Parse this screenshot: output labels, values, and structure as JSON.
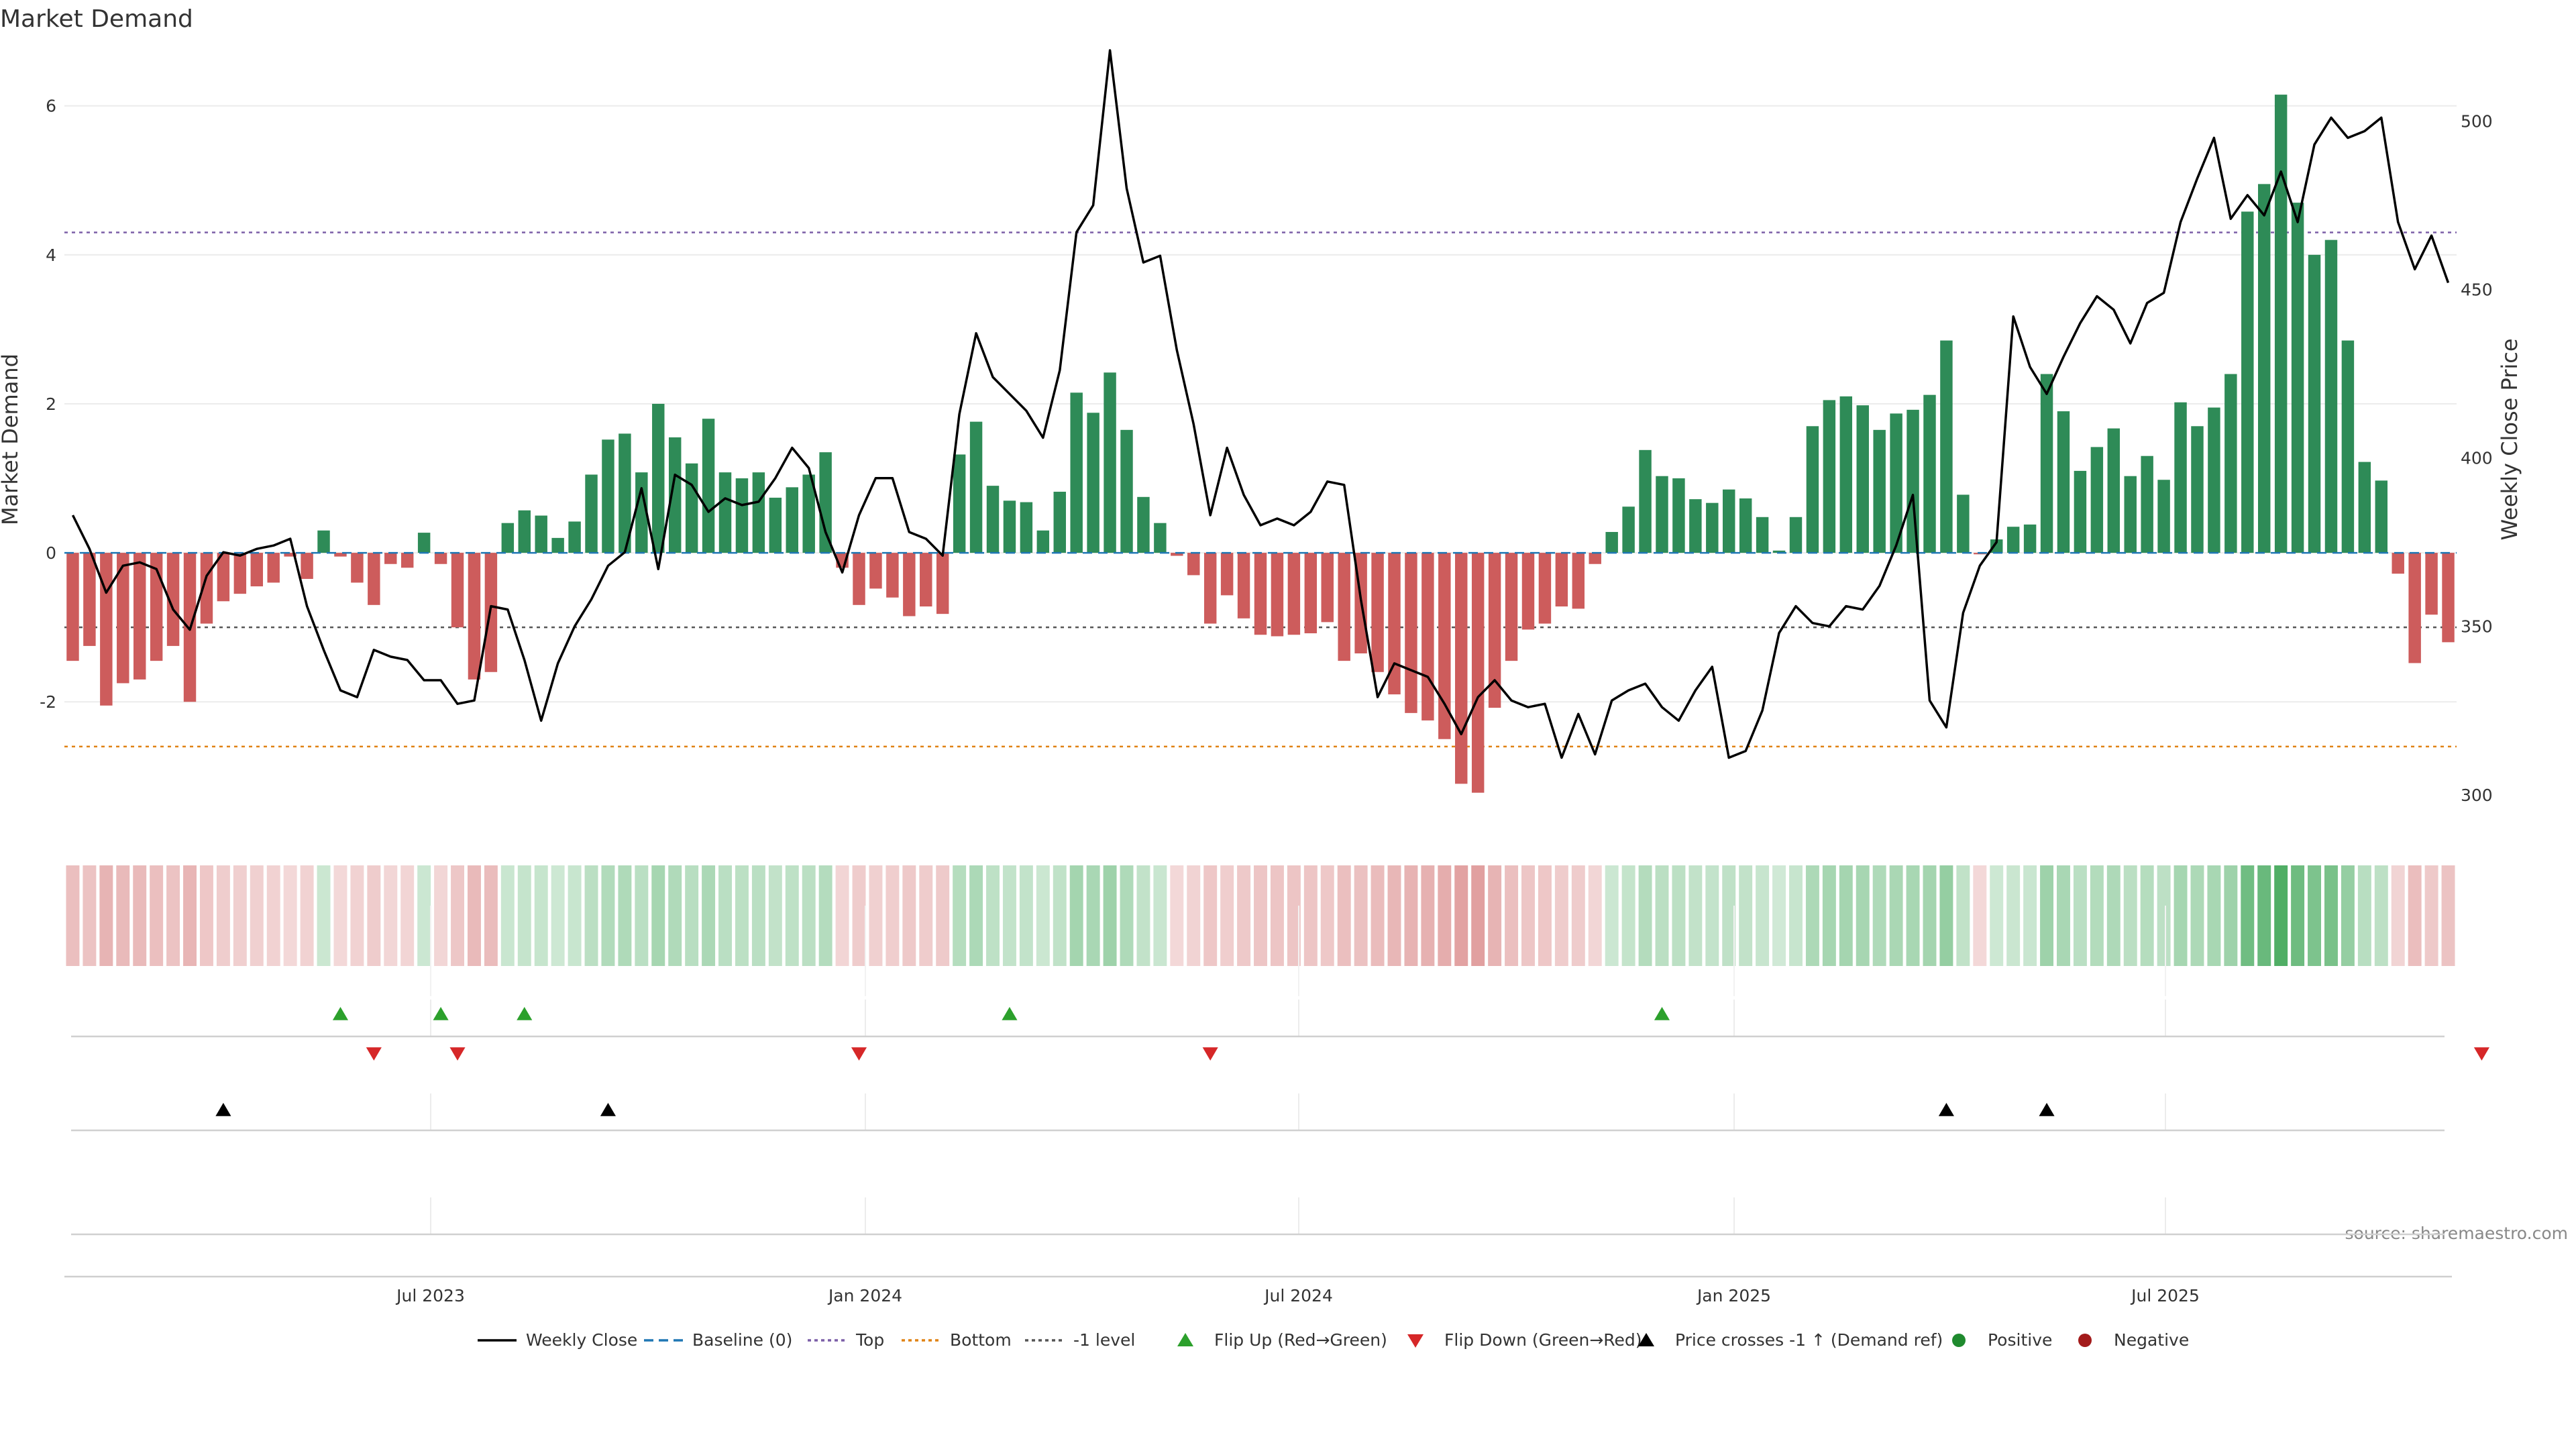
{
  "chart_data": {
    "type": "bar",
    "title": "Market Demand",
    "ylabel": "Market Demand",
    "y2label": "Weekly Close Price",
    "ylim": [
      -3.7,
      6.7
    ],
    "y2lim": [
      290,
      520
    ],
    "y_ticks": [
      -2,
      0,
      2,
      4,
      6
    ],
    "y2_ticks": [
      300,
      350,
      400,
      450,
      500
    ],
    "x_ticks": [
      "Jul 2023",
      "Jan 2024",
      "Jul 2024",
      "Jan 2025",
      "Jul 2025"
    ],
    "source": "source: sharemaestro.com",
    "reference_lines": {
      "baseline": 0,
      "top": 4.3,
      "minus_one": -1.0,
      "bottom": -2.6
    },
    "series": [
      {
        "name": "Market Demand",
        "values": [
          -1.45,
          -1.25,
          -2.05,
          -1.75,
          -1.7,
          -1.45,
          -1.25,
          -2.0,
          -0.95,
          -0.65,
          -0.55,
          -0.45,
          -0.4,
          -0.05,
          -0.35,
          0.3,
          -0.05,
          -0.4,
          -0.7,
          -0.15,
          -0.2,
          0.27,
          -0.15,
          -1.0,
          -1.7,
          -1.6,
          0.4,
          0.57,
          0.5,
          0.2,
          0.42,
          1.05,
          1.52,
          1.6,
          1.08,
          2.0,
          1.55,
          1.2,
          1.8,
          1.08,
          1.0,
          1.08,
          0.74,
          0.88,
          1.05,
          1.35,
          -0.2,
          -0.7,
          -0.48,
          -0.6,
          -0.85,
          -0.72,
          -0.82,
          1.32,
          1.76,
          0.9,
          0.7,
          0.68,
          0.3,
          0.82,
          2.15,
          1.88,
          2.42,
          1.65,
          0.75,
          0.4,
          -0.04,
          -0.3,
          -0.95,
          -0.57,
          -0.88,
          -1.1,
          -1.12,
          -1.1,
          -1.08,
          -0.93,
          -1.45,
          -1.35,
          -1.6,
          -1.9,
          -2.15,
          -2.25,
          -2.5,
          -3.1,
          -3.22,
          -2.08,
          -1.45,
          -1.03,
          -0.95,
          -0.72,
          -0.75,
          -0.15,
          0.28,
          0.62,
          1.38,
          1.03,
          1.0,
          0.72,
          0.67,
          0.85,
          0.73,
          0.48,
          0.03,
          0.48,
          1.7,
          2.05,
          2.1,
          1.98,
          1.65,
          1.87,
          1.92,
          2.12,
          2.85,
          0.78,
          -0.02,
          0.18,
          0.35,
          0.38,
          2.4,
          1.9,
          1.1,
          1.42,
          1.67,
          1.03,
          1.3,
          0.98,
          2.02,
          1.7,
          1.95,
          2.4,
          4.58,
          4.95,
          6.15,
          4.7,
          4.0,
          4.2,
          2.85,
          1.22,
          0.97,
          -0.28,
          -1.48,
          -0.83,
          -1.2
        ]
      },
      {
        "name": "Weekly Close",
        "values": [
          383,
          373,
          360,
          368,
          369,
          367,
          355,
          349,
          365,
          372,
          371,
          373,
          374,
          376,
          356,
          343,
          331,
          329,
          343,
          341,
          340,
          334,
          334,
          327,
          328,
          356,
          355,
          340,
          322,
          339,
          350,
          358,
          368,
          372,
          391,
          367,
          395,
          392,
          384,
          388,
          386,
          387,
          394,
          403,
          397,
          378,
          366,
          383,
          394,
          394,
          378,
          376,
          371,
          413,
          437,
          424,
          419,
          414,
          406,
          426,
          467,
          475,
          521,
          480,
          458,
          460,
          432,
          410,
          383,
          403,
          389,
          380,
          382,
          380,
          384,
          393,
          392,
          358,
          329,
          339,
          337,
          335,
          327,
          318,
          329,
          334,
          328,
          326,
          327,
          311,
          324,
          312,
          328,
          331,
          333,
          326,
          322,
          331,
          338,
          311,
          313,
          325,
          348,
          356,
          351,
          350,
          356,
          355,
          362,
          374,
          389,
          328,
          320,
          354,
          368,
          375,
          442,
          427,
          419,
          430,
          440,
          448,
          444,
          434,
          446,
          449,
          470,
          483,
          495,
          471,
          478,
          472,
          485,
          470,
          493,
          501,
          495,
          497,
          501,
          470,
          456,
          466,
          452
        ]
      }
    ],
    "flip_up_weeks": [
      16,
      22,
      27,
      56,
      95
    ],
    "flip_down_weeks": [
      18,
      23,
      47,
      68,
      144
    ],
    "price_cross_weeks": [
      9,
      32,
      112,
      118
    ],
    "legend": [
      {
        "label": "Weekly Close",
        "style": "line",
        "color": "#000000"
      },
      {
        "label": "Baseline (0)",
        "style": "dash",
        "color": "#1f77b4"
      },
      {
        "label": "Top",
        "style": "dot",
        "color": "#7b5ea7"
      },
      {
        "label": "Bottom",
        "style": "dot",
        "color": "#e08214"
      },
      {
        "label": "-1 level",
        "style": "dot",
        "color": "#555555"
      },
      {
        "label": "Flip Up (Red→Green)",
        "style": "tri-up",
        "color": "#2ca02c"
      },
      {
        "label": "Flip Down (Green→Red)",
        "style": "tri-down",
        "color": "#d62728"
      },
      {
        "label": "Price crosses -1 ↑ (Demand ref)",
        "style": "tri-up",
        "color": "#000000"
      },
      {
        "label": "Positive",
        "style": "circle",
        "color": "#1f8a2e"
      },
      {
        "label": "Negative",
        "style": "circle",
        "color": "#a31b1b"
      }
    ],
    "colors": {
      "positive": "#2e8b57",
      "negative": "#cd5c5c",
      "price": "#000000"
    }
  }
}
